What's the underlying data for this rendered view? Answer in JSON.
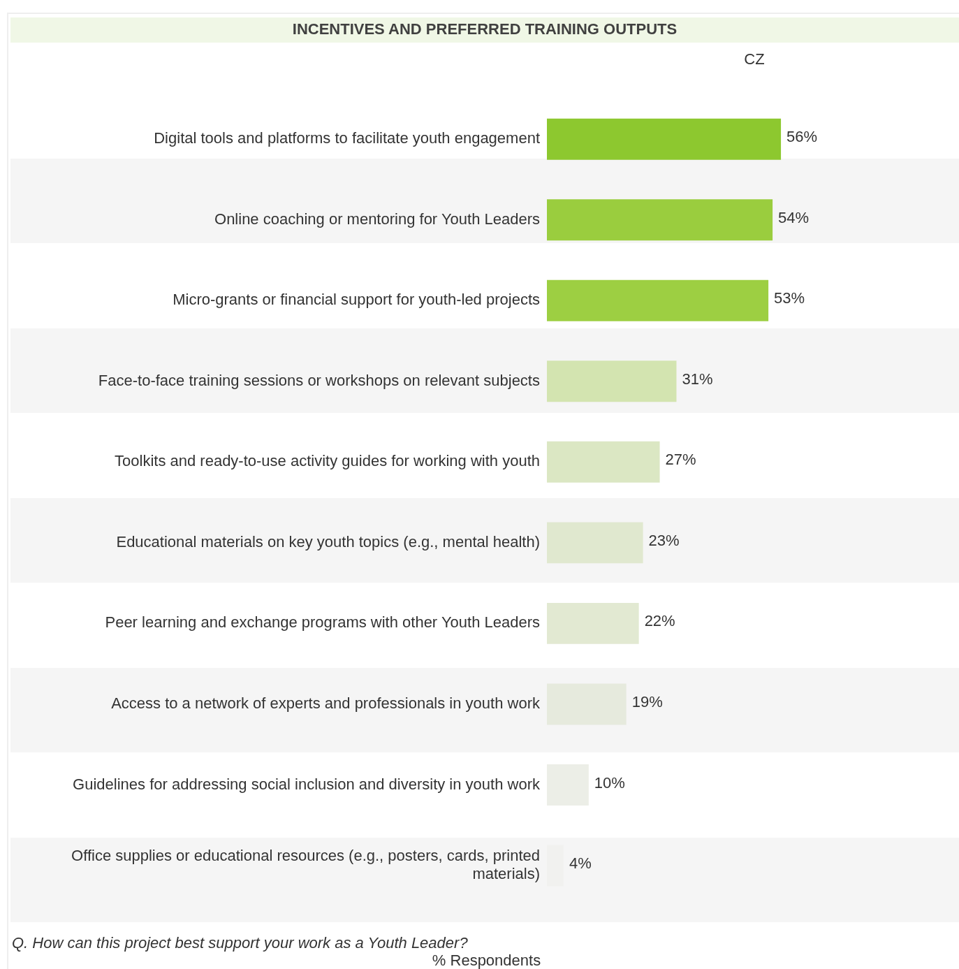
{
  "chart_data": {
    "type": "bar",
    "orientation": "horizontal",
    "title": "INCENTIVES AND PREFERRED TRAINING OUTPUTS",
    "xlabel": "% Respondents",
    "annotations": [
      "Q. How can this project best support your work as a Youth Leader?"
    ],
    "categories": [
      "Digital tools and platforms to facilitate youth engagement",
      "Online coaching or mentoring for Youth Leaders",
      "Micro-grants or financial support for youth-led projects",
      "Face-to-face training sessions or workshops on relevant subjects",
      "Toolkits and ready-to-use activity guides for working with youth",
      "Educational materials on key youth topics (e.g., mental health)",
      "Peer learning and exchange programs with other Youth Leaders",
      "Access to a network of experts and professionals in youth work",
      "Guidelines for addressing social inclusion and diversity in youth work",
      "Office supplies or educational resources (e.g., posters, cards, printed materials)"
    ],
    "series": [
      {
        "name": "CZ",
        "values": [
          56,
          54,
          53,
          31,
          27,
          23,
          22,
          19,
          10,
          4
        ],
        "value_labels": [
          "56%",
          "54%",
          "53%",
          "31%",
          "27%",
          "23%",
          "22%",
          "19%",
          "10%",
          "4%"
        ],
        "colors": [
          "#8dc82f",
          "#9acd3e",
          "#9dcf42",
          "#d3e4b0",
          "#dbe7c3",
          "#e0e8cf",
          "#e2e9d2",
          "#e6eadd",
          "#eceee7",
          "#f1f1ef"
        ]
      }
    ],
    "tick_labels": "y",
    "legend": false
  }
}
